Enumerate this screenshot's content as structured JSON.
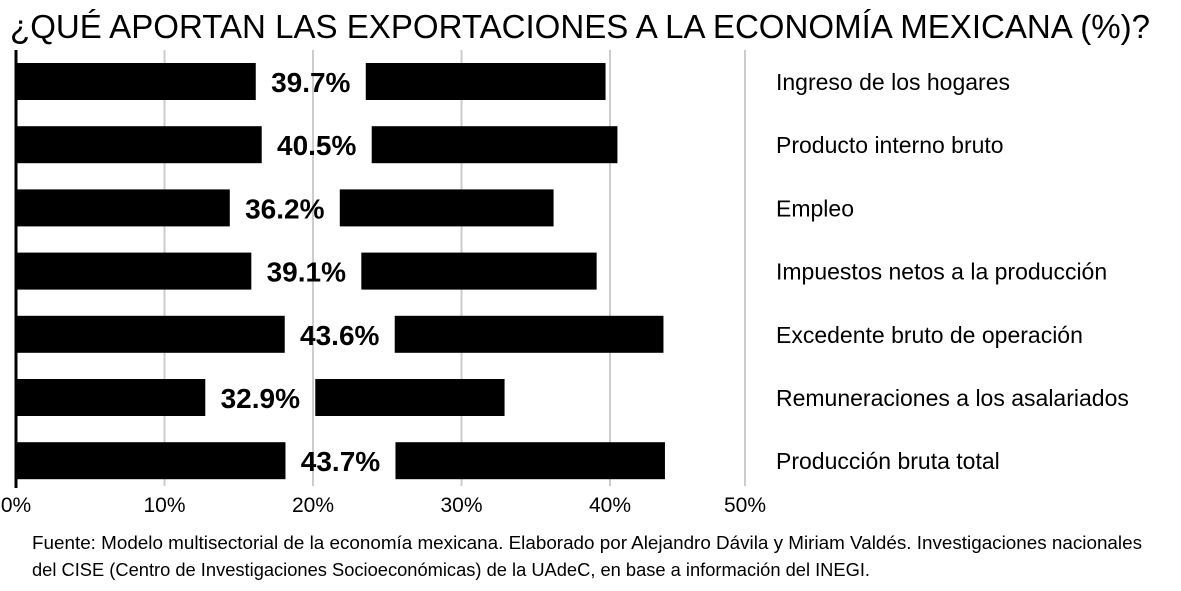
{
  "chart_data": {
    "type": "bar",
    "orientation": "horizontal",
    "title": "¿QUÉ APORTAN LAS EXPORTACIONES A LA ECONOMÍA MEXICANA (%)?",
    "categories": [
      "Ingreso  de los hogares",
      "Producto interno bruto",
      "Empleo",
      "Impuestos netos a la producción",
      "Excedente bruto de operación",
      "Remuneraciones a los asalariados",
      "Producción bruta total"
    ],
    "values": [
      39.7,
      40.5,
      36.2,
      39.1,
      43.6,
      32.9,
      43.7
    ],
    "data_labels": [
      "39.7%",
      "40.5%",
      "36.2%",
      "39.1%",
      "43.6%",
      "32.9%",
      "43.7%"
    ],
    "xlim": [
      0,
      50
    ],
    "x_ticks": [
      "0%",
      "10%",
      "20%",
      "30%",
      "40%",
      "50%"
    ],
    "grid": true,
    "bar_color": "#000000",
    "grid_color": "#cccccc",
    "xlabel": "",
    "ylabel": ""
  },
  "footnote": [
    "Fuente: Modelo multisectorial de la economía mexicana. Elaborado por Alejandro Dávila y Miriam Valdés. Investigaciones nacionales",
    "del CISE (Centro de Investigaciones Socioeconómicas) de la UAdeC, en base a información del INEGI."
  ]
}
